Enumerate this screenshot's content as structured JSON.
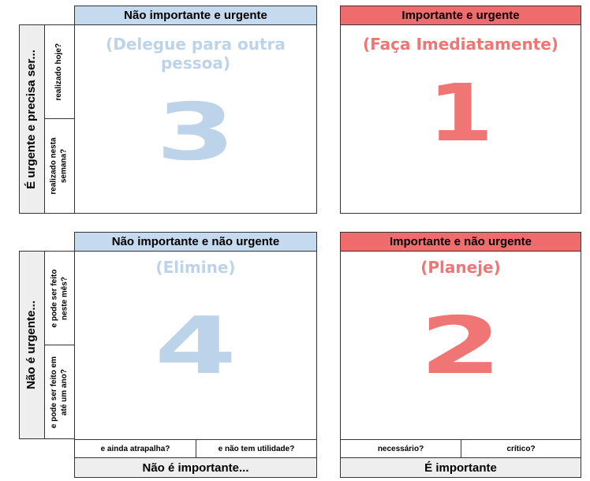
{
  "colors": {
    "blue_header": "#c5d9ef",
    "blue_text": "#bcd3ea",
    "red_header": "#f06c6c",
    "red_text": "#f07575",
    "grey_cell": "#eeeeee",
    "border": "#333333"
  },
  "quadrant3": {
    "header": "Não importante e urgente",
    "subtitle": "(Delegue para outra pessoa)",
    "number": "3"
  },
  "quadrant1": {
    "header": "Importante e urgente",
    "subtitle": "(Faça Imediatamente)",
    "number": "1"
  },
  "quadrant4": {
    "header": "Não importante e não urgente",
    "subtitle": "(Elimine)",
    "number": "4"
  },
  "quadrant2": {
    "header": "Importante e não urgente",
    "subtitle": "(Planeje)",
    "number": "2"
  },
  "row_top": {
    "label": "É urgente e precisa ser...",
    "sub1": "realizado hoje?",
    "sub2_line1": "realizado nesta",
    "sub2_line2": "semana?"
  },
  "row_bottom": {
    "label": "Não é urgente...",
    "sub1_line1": "e pode ser feito",
    "sub1_line2": "neste mês?",
    "sub2_line1": "e pode ser feito em",
    "sub2_line2": "até um ano?"
  },
  "col_left_footer": {
    "sub1": "e ainda atrapalha?",
    "sub2": "e não tem utilidade?",
    "label": "Não é importante..."
  },
  "col_right_footer": {
    "sub1": "necessário?",
    "sub2": "crítico?",
    "label": "É importante"
  }
}
